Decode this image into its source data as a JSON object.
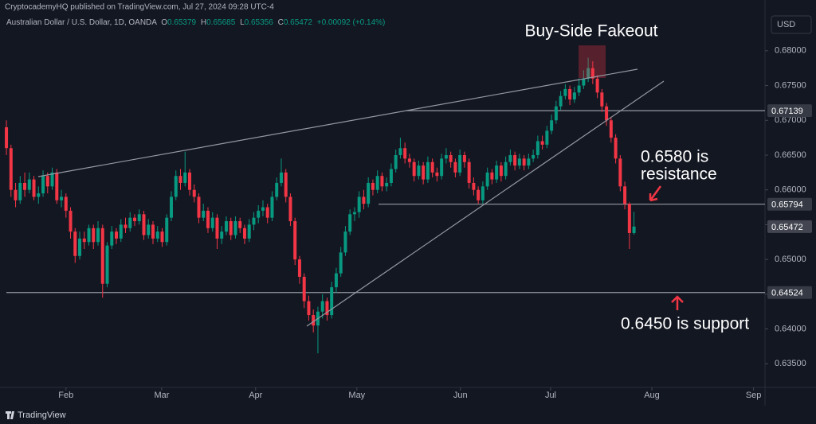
{
  "header": {
    "publisher": "CryptocademyHQ published on TradingView.com, Jul 27, 2024 09:28 UTC-4",
    "logo": "TradingView"
  },
  "chart_data": {
    "type": "candlestick",
    "symbol": "Australian Dollar / U.S. Dollar, 1D, OANDA",
    "ohlc_labels": [
      "O",
      "H",
      "L",
      "C"
    ],
    "change": "+0.00092 (+0.14%)",
    "currency": "USD",
    "open": [
      0.669,
      0.666,
      0.66,
      0.6585,
      0.661,
      0.66,
      0.6615,
      0.659,
      0.6595,
      0.662,
      0.6605,
      0.6625,
      0.6585,
      0.659,
      0.657,
      0.654,
      0.6505,
      0.653,
      0.6525,
      0.6545,
      0.6525,
      0.6545,
      0.6465,
      0.652,
      0.654,
      0.653,
      0.655,
      0.6545,
      0.656,
      0.6555,
      0.6565,
      0.6535,
      0.655,
      0.653,
      0.654,
      0.6525,
      0.656,
      0.659,
      0.662,
      0.661,
      0.6625,
      0.66,
      0.659,
      0.656,
      0.657,
      0.6545,
      0.656,
      0.653,
      0.654,
      0.6555,
      0.6535,
      0.6555,
      0.6545,
      0.653,
      0.655,
      0.656,
      0.657,
      0.6575,
      0.656,
      0.659,
      0.661,
      0.6625,
      0.659,
      0.6555,
      0.65,
      0.6475,
      0.644,
      0.642,
      0.6405,
      0.6425,
      0.644,
      0.642,
      0.646,
      0.648,
      0.651,
      0.654,
      0.6565,
      0.6568,
      0.659,
      0.658,
      0.661,
      0.66,
      0.662,
      0.6605,
      0.661,
      0.663,
      0.665,
      0.666,
      0.6645,
      0.664,
      0.662,
      0.6635,
      0.6615,
      0.664,
      0.6625,
      0.662,
      0.6645,
      0.665,
      0.664,
      0.6625,
      0.665,
      0.664,
      0.661,
      0.66,
      0.6585,
      0.6605,
      0.6625,
      0.6615,
      0.6635,
      0.662,
      0.664,
      0.665,
      0.6635,
      0.6645,
      0.6635,
      0.6645,
      0.665,
      0.667,
      0.6665,
      0.6685,
      0.67,
      0.672,
      0.6735,
      0.6745,
      0.673,
      0.674,
      0.675,
      0.676,
      0.6775,
      0.676,
      0.674,
      0.672,
      0.67,
      0.6675,
      0.6645,
      0.6605,
      0.658,
      0.65379
    ],
    "high": [
      0.67,
      0.6665,
      0.661,
      0.662,
      0.6625,
      0.6625,
      0.662,
      0.6605,
      0.6628,
      0.6625,
      0.6632,
      0.663,
      0.66,
      0.6595,
      0.6575,
      0.6545,
      0.654,
      0.654,
      0.655,
      0.655,
      0.6555,
      0.655,
      0.6525,
      0.6548,
      0.6545,
      0.6558,
      0.656,
      0.6568,
      0.6565,
      0.6572,
      0.657,
      0.6558,
      0.6555,
      0.6548,
      0.6545,
      0.6565,
      0.6598,
      0.6628,
      0.663,
      0.6655,
      0.663,
      0.6608,
      0.6595,
      0.658,
      0.6575,
      0.6568,
      0.6565,
      0.6548,
      0.6562,
      0.656,
      0.6562,
      0.656,
      0.655,
      0.6558,
      0.6568,
      0.6578,
      0.6585,
      0.658,
      0.6598,
      0.6618,
      0.6645,
      0.663,
      0.6595,
      0.656,
      0.6505,
      0.648,
      0.6448,
      0.6428,
      0.6432,
      0.645,
      0.6445,
      0.6468,
      0.6488,
      0.6518,
      0.6548,
      0.6572,
      0.6575,
      0.6598,
      0.66,
      0.6618,
      0.6615,
      0.6628,
      0.6625,
      0.6618,
      0.6638,
      0.6658,
      0.6675,
      0.6668,
      0.6652,
      0.6645,
      0.6642,
      0.664,
      0.6648,
      0.6645,
      0.6632,
      0.6652,
      0.666,
      0.6655,
      0.6645,
      0.6658,
      0.6655,
      0.6645,
      0.6618,
      0.6605,
      0.6612,
      0.6632,
      0.663,
      0.6642,
      0.664,
      0.6648,
      0.6658,
      0.6655,
      0.6652,
      0.665,
      0.6652,
      0.6658,
      0.6678,
      0.6678,
      0.6692,
      0.6708,
      0.6728,
      0.6742,
      0.6752,
      0.675,
      0.6748,
      0.676,
      0.6772,
      0.679,
      0.6785,
      0.6765,
      0.6745,
      0.6725,
      0.6705,
      0.668,
      0.665,
      0.6612,
      0.6582,
      0.65685
    ],
    "low": [
      0.665,
      0.659,
      0.6575,
      0.658,
      0.659,
      0.6595,
      0.6585,
      0.658,
      0.659,
      0.6595,
      0.66,
      0.658,
      0.6575,
      0.656,
      0.653,
      0.6495,
      0.65,
      0.6515,
      0.652,
      0.6515,
      0.652,
      0.6445,
      0.646,
      0.6515,
      0.6522,
      0.6525,
      0.6538,
      0.654,
      0.6548,
      0.655,
      0.6528,
      0.653,
      0.6522,
      0.6525,
      0.6518,
      0.652,
      0.6555,
      0.6585,
      0.66,
      0.6605,
      0.6592,
      0.6582,
      0.6552,
      0.6555,
      0.6538,
      0.654,
      0.6515,
      0.6522,
      0.6535,
      0.6528,
      0.653,
      0.6538,
      0.6522,
      0.6525,
      0.6542,
      0.6552,
      0.6562,
      0.6552,
      0.6555,
      0.6585,
      0.6605,
      0.6582,
      0.6548,
      0.6492,
      0.6465,
      0.643,
      0.6412,
      0.6395,
      0.6365,
      0.6415,
      0.6412,
      0.6415,
      0.6452,
      0.6475,
      0.6505,
      0.6535,
      0.6555,
      0.656,
      0.6572,
      0.6575,
      0.6592,
      0.6595,
      0.6598,
      0.6598,
      0.6605,
      0.6625,
      0.6645,
      0.6638,
      0.6632,
      0.6612,
      0.6615,
      0.6608,
      0.661,
      0.6618,
      0.6612,
      0.6615,
      0.6638,
      0.6632,
      0.6618,
      0.662,
      0.6632,
      0.6602,
      0.6592,
      0.658,
      0.658,
      0.66,
      0.6608,
      0.661,
      0.6612,
      0.6615,
      0.6635,
      0.6628,
      0.663,
      0.6628,
      0.663,
      0.664,
      0.6645,
      0.6658,
      0.666,
      0.668,
      0.6695,
      0.6715,
      0.673,
      0.6722,
      0.6725,
      0.6735,
      0.6745,
      0.6755,
      0.6752,
      0.6732,
      0.6712,
      0.6692,
      0.6668,
      0.6638,
      0.6598,
      0.6572,
      0.6515,
      0.65356
    ],
    "close": [
      0.666,
      0.66,
      0.6585,
      0.661,
      0.66,
      0.6615,
      0.659,
      0.6595,
      0.662,
      0.6605,
      0.6625,
      0.6585,
      0.659,
      0.657,
      0.654,
      0.6505,
      0.653,
      0.6525,
      0.6545,
      0.6525,
      0.6545,
      0.6465,
      0.652,
      0.654,
      0.653,
      0.655,
      0.6545,
      0.656,
      0.6555,
      0.6565,
      0.6535,
      0.655,
      0.653,
      0.654,
      0.6525,
      0.656,
      0.659,
      0.662,
      0.661,
      0.6625,
      0.66,
      0.659,
      0.656,
      0.657,
      0.6545,
      0.656,
      0.653,
      0.654,
      0.6555,
      0.6535,
      0.6555,
      0.6545,
      0.653,
      0.655,
      0.656,
      0.657,
      0.6575,
      0.656,
      0.659,
      0.661,
      0.6625,
      0.659,
      0.6555,
      0.65,
      0.6475,
      0.644,
      0.642,
      0.6405,
      0.6425,
      0.644,
      0.642,
      0.646,
      0.648,
      0.651,
      0.654,
      0.6565,
      0.6568,
      0.659,
      0.658,
      0.661,
      0.66,
      0.662,
      0.6605,
      0.661,
      0.663,
      0.665,
      0.666,
      0.6645,
      0.664,
      0.662,
      0.6635,
      0.6615,
      0.664,
      0.6625,
      0.662,
      0.6645,
      0.665,
      0.664,
      0.6625,
      0.665,
      0.664,
      0.661,
      0.66,
      0.6585,
      0.6605,
      0.6625,
      0.6615,
      0.6635,
      0.662,
      0.664,
      0.665,
      0.6635,
      0.6645,
      0.6635,
      0.6645,
      0.665,
      0.667,
      0.6665,
      0.6685,
      0.67,
      0.672,
      0.6735,
      0.6745,
      0.673,
      0.674,
      0.675,
      0.676,
      0.6775,
      0.676,
      0.674,
      0.672,
      0.67,
      0.6675,
      0.6645,
      0.6605,
      0.658,
      0.6538,
      0.65472
    ],
    "up_color": "#089981",
    "down_color": "#f23645",
    "ylim": [
      0.6316,
      0.6873
    ],
    "yticks": [
      {
        "value": 0.635,
        "label": "0.63500"
      },
      {
        "value": 0.64,
        "label": "0.64000"
      },
      {
        "value": 0.645,
        "label": "0.64500"
      },
      {
        "value": 0.65,
        "label": "0.65000"
      },
      {
        "value": 0.655,
        "label": "0.65500"
      },
      {
        "value": 0.66,
        "label": "0.66000"
      },
      {
        "value": 0.665,
        "label": "0.66500"
      },
      {
        "value": 0.67,
        "label": "0.67000"
      },
      {
        "value": 0.675,
        "label": "0.67500"
      },
      {
        "value": 0.68,
        "label": "0.68000"
      }
    ],
    "xlim": [
      -1.4,
      165.6
    ],
    "xticks": [
      {
        "value": 13,
        "label": "Feb"
      },
      {
        "value": 33.9,
        "label": "Mar"
      },
      {
        "value": 54.4,
        "label": "Apr"
      },
      {
        "value": 76.5,
        "label": "May"
      },
      {
        "value": 99.1,
        "label": "Jun"
      },
      {
        "value": 118.8,
        "label": "Jul"
      },
      {
        "value": 140.9,
        "label": "Aug"
      },
      {
        "value": 163.1,
        "label": "Sep"
      }
    ],
    "price_lines": [
      0.67139,
      0.65794,
      0.64524
    ],
    "annotations": {
      "fakeout": "Buy-Side Fakeout",
      "resistance": [
        "0.6580 is",
        "resistance"
      ],
      "support": "0.6450 is support"
    },
    "grid": false
  }
}
